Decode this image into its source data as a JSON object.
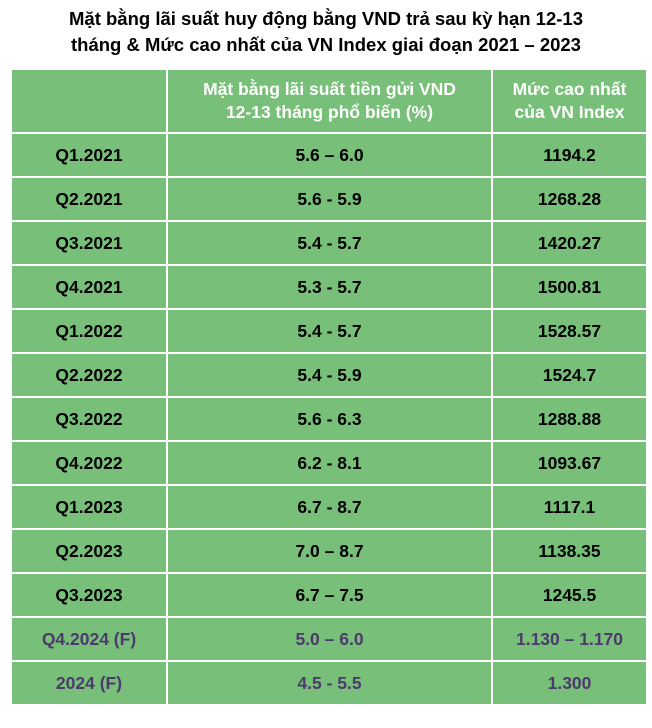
{
  "title": {
    "line1": "Mặt bằng lãi suất huy động bằng VND trả sau kỳ hạn 12-13",
    "line2": "tháng & Mức cao nhất của VN Index giai đoạn 2021 – 2023"
  },
  "colors": {
    "cell_green": "#78c079",
    "header_text": "#ffffff",
    "body_text": "#000000",
    "forecast_text": "#4b3a6b"
  },
  "chart_data": {
    "type": "table",
    "title": "Mặt bằng lãi suất huy động bằng VND trả sau kỳ hạn 12-13 tháng & Mức cao nhất của VN Index giai đoạn 2021 – 2023",
    "columns": [
      "",
      "Mặt bằng lãi suất tiền gửi VND 12-13 tháng phổ biến (%)",
      "Mức cao nhất của VN Index"
    ],
    "header": {
      "col2_line1": "Mặt bằng lãi suất tiền gửi VND",
      "col2_line2": "12-13 tháng phổ biến (%)",
      "col3_line1": "Mức cao nhất",
      "col3_line2": "của VN Index"
    },
    "rows": [
      {
        "period": "Q1.2021",
        "rate": "5.6 – 6.0",
        "vnindex": "1194.2"
      },
      {
        "period": "Q2.2021",
        "rate": "5.6 - 5.9",
        "vnindex": "1268.28"
      },
      {
        "period": "Q3.2021",
        "rate": "5.4 - 5.7",
        "vnindex": "1420.27"
      },
      {
        "period": "Q4.2021",
        "rate": "5.3 - 5.7",
        "vnindex": "1500.81"
      },
      {
        "period": "Q1.2022",
        "rate": "5.4 - 5.7",
        "vnindex": "1528.57"
      },
      {
        "period": "Q2.2022",
        "rate": "5.4 - 5.9",
        "vnindex": "1524.7"
      },
      {
        "period": "Q3.2022",
        "rate": "5.6 - 6.3",
        "vnindex": "1288.88"
      },
      {
        "period": "Q4.2022",
        "rate": "6.2 - 8.1",
        "vnindex": "1093.67"
      },
      {
        "period": "Q1.2023",
        "rate": "6.7 - 8.7",
        "vnindex": "1117.1"
      },
      {
        "period": "Q2.2023",
        "rate": "7.0 – 8.7",
        "vnindex": "1138.35"
      },
      {
        "period": "Q3.2023",
        "rate": "6.7 – 7.5",
        "vnindex": "1245.5"
      },
      {
        "period": "Q4.2024 (F)",
        "rate": "5.0 – 6.0",
        "vnindex": "1.130 – 1.170",
        "forecast": true
      },
      {
        "period": "2024 (F)",
        "rate": "4.5 - 5.5",
        "vnindex": "1.300",
        "forecast": true
      }
    ]
  }
}
